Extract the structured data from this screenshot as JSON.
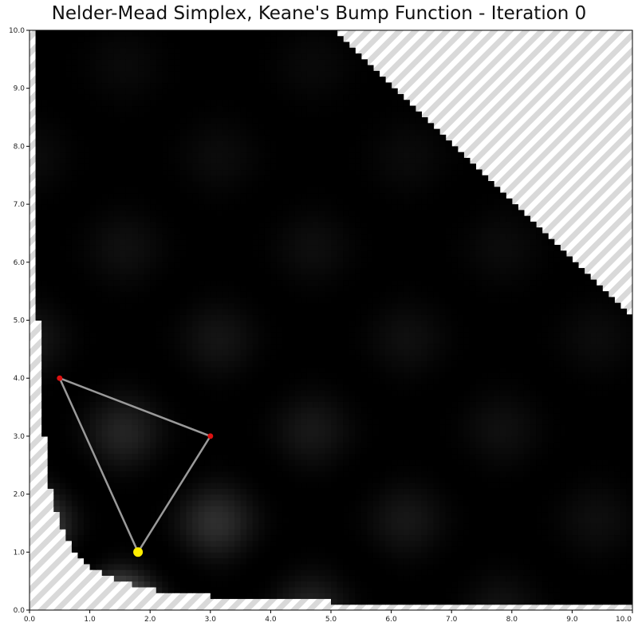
{
  "chart_data": {
    "type": "heatmap",
    "title": "Nelder-Mead Simplex, Keane's Bump Function - Iteration 0",
    "xlabel": "",
    "ylabel": "",
    "xlim": [
      0,
      10
    ],
    "ylim": [
      0,
      10
    ],
    "x_ticks": [
      "0.0",
      "1.0",
      "2.0",
      "3.0",
      "4.0",
      "5.0",
      "6.0",
      "7.0",
      "8.0",
      "9.0",
      "10.0"
    ],
    "y_ticks": [
      "0.0",
      "1.0",
      "2.0",
      "3.0",
      "4.0",
      "5.0",
      "6.0",
      "7.0",
      "8.0",
      "9.0",
      "10.0"
    ],
    "colormap": "grayscale",
    "infeasible_fill": "gray-white diagonal stripes",
    "feasible_region": "x*y >= 0.75 and x + y <= 15",
    "simplex_vertices": [
      {
        "x": 0.5,
        "y": 4.0,
        "role": "vertex"
      },
      {
        "x": 3.0,
        "y": 3.0,
        "role": "vertex"
      },
      {
        "x": 1.8,
        "y": 1.0,
        "role": "best"
      }
    ],
    "colors": {
      "vertex": "#dd1111",
      "best": "#ffee00",
      "edge": "#9a9a9a",
      "stripe_light": "#d9d9d9",
      "stripe_dark": "#ffffff"
    },
    "grid": false,
    "legend": "none"
  }
}
